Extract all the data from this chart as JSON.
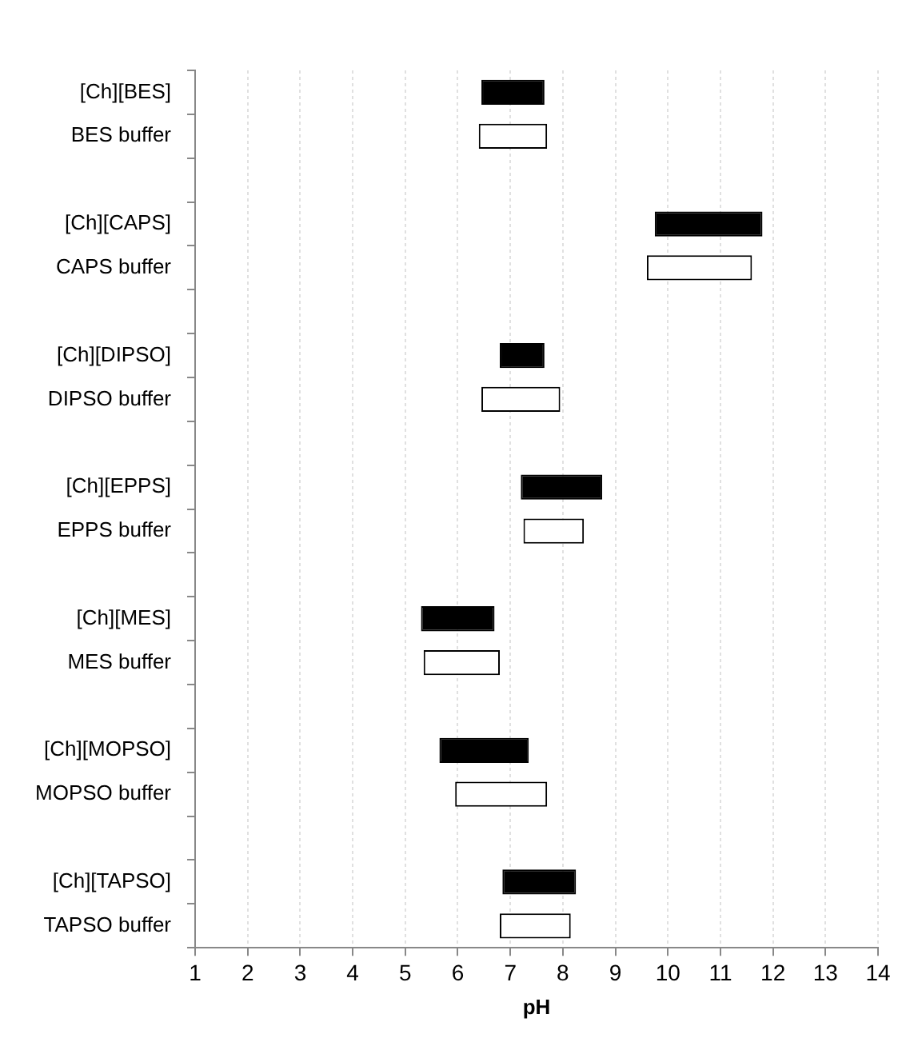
{
  "chart_data": {
    "type": "bar",
    "orientation": "horizontal",
    "xlabel": "pH",
    "categories": [
      "[Ch][BES]",
      "BES buffer",
      null,
      "[Ch][CAPS]",
      "CAPS buffer",
      null,
      "[Ch][DIPSO]",
      "DIPSO buffer",
      null,
      "[Ch][EPPS]",
      "EPPS buffer",
      null,
      "[Ch][MES]",
      "MES buffer",
      null,
      "[Ch][MOPSO]",
      "MOPSO buffer",
      null,
      "[Ch][TAPSO]",
      "TAPSO buffer"
    ],
    "base": [
      6.45,
      6.4,
      null,
      9.75,
      9.6,
      null,
      6.8,
      6.45,
      null,
      7.2,
      7.25,
      null,
      5.3,
      5.35,
      null,
      5.65,
      5.95,
      null,
      6.85,
      6.8
    ],
    "values": [
      1.2,
      1.3,
      null,
      2.05,
      2.0,
      null,
      0.85,
      1.5,
      null,
      1.55,
      1.15,
      null,
      1.4,
      1.45,
      null,
      1.7,
      1.75,
      null,
      1.4,
      1.35
    ],
    "colors": [
      "#000000",
      "#ffffff",
      null,
      "#000000",
      "#ffffff",
      null,
      "#000000",
      "#ffffff",
      null,
      "#000000",
      "#ffffff",
      null,
      "#000000",
      "#ffffff",
      null,
      "#000000",
      "#ffffff",
      null,
      "#000000",
      "#ffffff"
    ],
    "xlim": [
      1,
      14
    ],
    "xticks": [
      1,
      2,
      3,
      4,
      5,
      6,
      7,
      8,
      9,
      10,
      11,
      12,
      13,
      14
    ],
    "grid": "x",
    "legend": false
  }
}
